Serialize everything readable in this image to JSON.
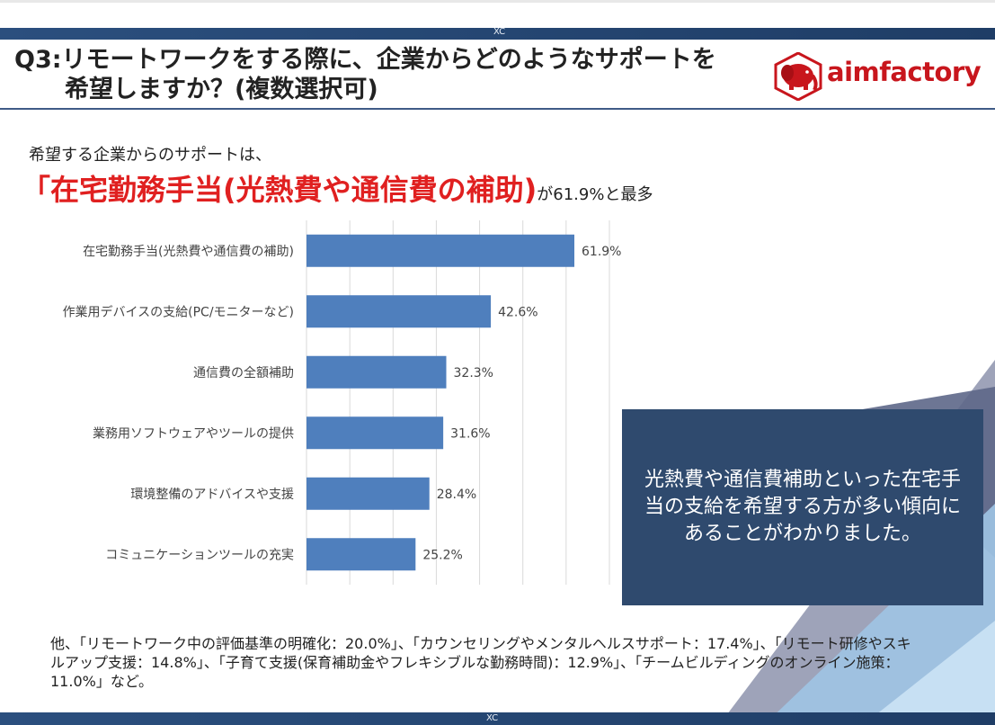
{
  "header": {
    "mark": "XC",
    "title_line1": "Q3:リモートワークをする際に、企業からどのようなサポートを",
    "title_line2": "希望しますか？(複数選択可)",
    "logo_text": "aimfactory"
  },
  "summary": {
    "lead": "希望する企業からのサポートは、",
    "highlight": "「在宅勤務手当(光熱費や通信費の補助)",
    "suffix": "が61.9%と最多"
  },
  "chart_data": {
    "type": "bar",
    "orientation": "horizontal",
    "categories": [
      "在宅勤務手当(光熱費や通信費の補助)",
      "作業用デバイスの支給(PC/モニターなど)",
      "通信費の全額補助",
      "業務用ソフトウェアやツールの提供",
      "環境整備のアドバイスや支援",
      "コミュニケーションツールの充実"
    ],
    "values": [
      61.9,
      42.6,
      32.3,
      31.6,
      28.4,
      25.2
    ],
    "value_labels": [
      "61.9%",
      "42.6%",
      "32.3%",
      "31.6%",
      "28.4%",
      "25.2%"
    ],
    "xlim": [
      0,
      70
    ],
    "grid": true,
    "bar_color": "#4f7fbd"
  },
  "callout": {
    "text": "光熱費や通信費補助といった在宅手当の支給を希望する方が多い傾向にあることがわかりました。"
  },
  "note": {
    "text": "他、「リモートワーク中の評価基準の明確化：20.0%」、「カウンセリングやメンタルヘルスサポート：17.4%」、「リモート研修やスキルアップ支援：14.8%」、「子育て支援(保育補助金やフレキシブルな勤務時間)：12.9%」、「チームビルディングのオンライン施策：11.0%」など。"
  },
  "footer": {
    "mark": "XC"
  },
  "colors": {
    "accent_red": "#e02020",
    "navy": "#2f4a6e",
    "bar": "#4f7fbd",
    "logo_red": "#c8161d"
  }
}
